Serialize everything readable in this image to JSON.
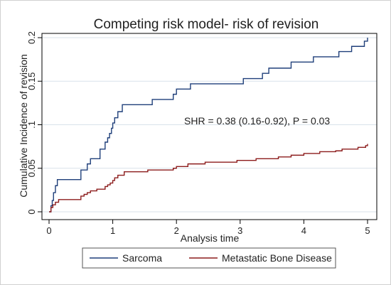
{
  "chart_data": {
    "type": "line",
    "title": "Competing risk  model- risk of revision",
    "xlabel": "Analysis time",
    "ylabel": "Cumulative Incidence of revision",
    "xlim": [
      0,
      5
    ],
    "ylim": [
      0,
      0.2
    ],
    "xticks": [
      "0",
      "1",
      "2",
      "3",
      "4",
      "5"
    ],
    "xtick_values": [
      0,
      1,
      2,
      3,
      4,
      5
    ],
    "yticks": [
      "0",
      "0.05",
      ".1",
      "0.15",
      "0.2"
    ],
    "ytick_values": [
      0,
      0.05,
      0.1,
      0.15,
      0.2
    ],
    "grid": "horizontal",
    "legend_position": "bottom",
    "annotation": "SHR = 0.38 (0.16-0.92), P = 0.03",
    "series": [
      {
        "name": "Sarcoma",
        "color": "#1f3f7a",
        "x": [
          0,
          0.03,
          0.05,
          0.07,
          0.1,
          0.13,
          0.2,
          0.5,
          0.6,
          0.65,
          0.8,
          0.88,
          0.92,
          0.95,
          0.98,
          1.0,
          1.03,
          1.08,
          1.15,
          1.22,
          1.62,
          1.95,
          2.0,
          2.05,
          2.22,
          3.05,
          3.35,
          3.45,
          3.55,
          3.8,
          4.15,
          4.55,
          4.75,
          4.95,
          5.0
        ],
        "y": [
          0,
          0.007,
          0.013,
          0.022,
          0.03,
          0.037,
          0.037,
          0.048,
          0.055,
          0.061,
          0.072,
          0.08,
          0.085,
          0.09,
          0.096,
          0.102,
          0.108,
          0.115,
          0.123,
          0.123,
          0.129,
          0.135,
          0.141,
          0.141,
          0.147,
          0.153,
          0.159,
          0.165,
          0.165,
          0.172,
          0.178,
          0.184,
          0.19,
          0.196,
          0.2
        ]
      },
      {
        "name": "Metastatic Bone Disease",
        "color": "#8c1c1c",
        "x": [
          0,
          0.03,
          0.06,
          0.1,
          0.15,
          0.2,
          0.5,
          0.55,
          0.6,
          0.65,
          0.75,
          0.88,
          0.92,
          0.96,
          1.0,
          1.03,
          1.08,
          1.18,
          1.55,
          1.95,
          2.0,
          2.18,
          2.45,
          2.95,
          3.25,
          3.6,
          3.8,
          4.0,
          4.25,
          4.5,
          4.6,
          4.85,
          4.97,
          5.0
        ],
        "y": [
          0,
          0.005,
          0.008,
          0.011,
          0.014,
          0.014,
          0.018,
          0.02,
          0.022,
          0.024,
          0.026,
          0.029,
          0.031,
          0.033,
          0.036,
          0.039,
          0.042,
          0.046,
          0.048,
          0.05,
          0.052,
          0.055,
          0.057,
          0.059,
          0.061,
          0.063,
          0.065,
          0.067,
          0.069,
          0.07,
          0.072,
          0.074,
          0.076,
          0.078
        ]
      }
    ]
  }
}
